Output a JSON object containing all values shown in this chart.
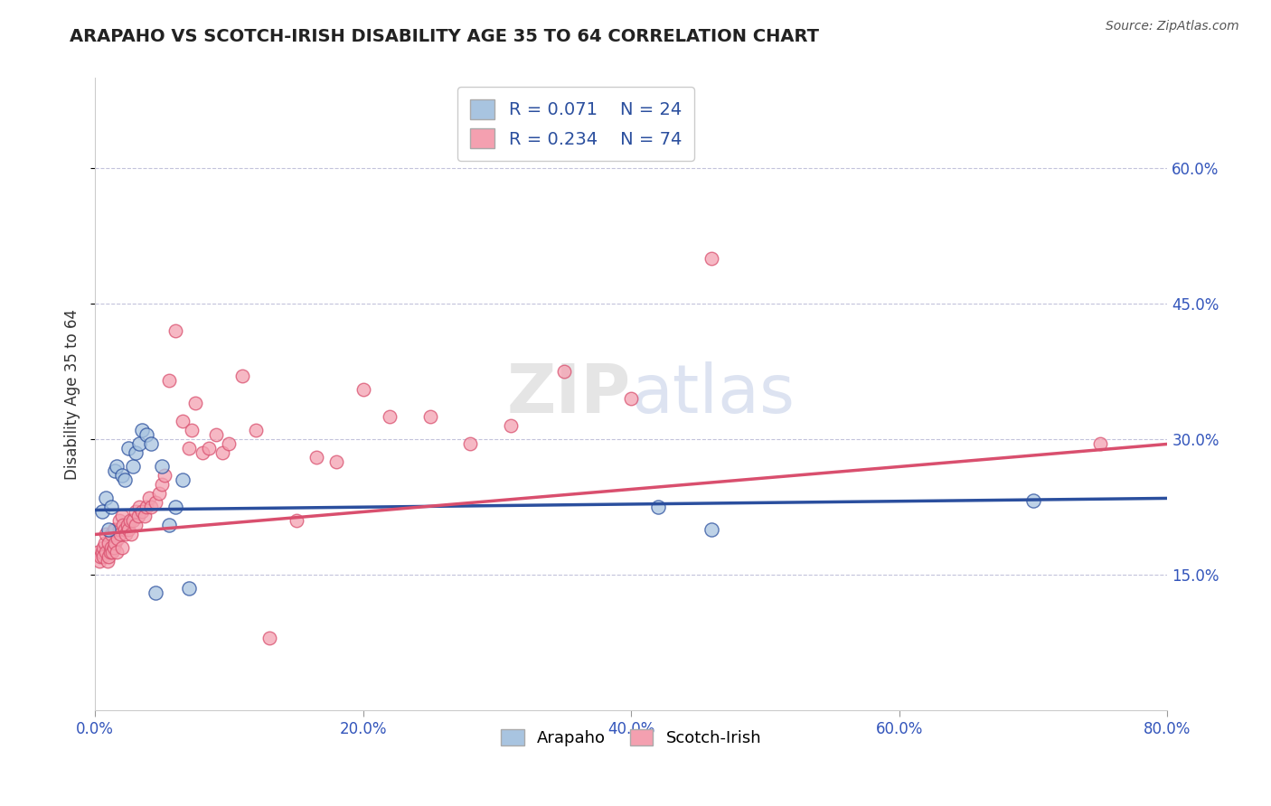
{
  "title": "ARAPAHO VS SCOTCH-IRISH DISABILITY AGE 35 TO 64 CORRELATION CHART",
  "source": "Source: ZipAtlas.com",
  "ylabel": "Disability Age 35 to 64",
  "watermark": "ZIPatlas",
  "legend_label1": "Arapaho",
  "legend_label2": "Scotch-Irish",
  "R1": 0.071,
  "N1": 24,
  "R2": 0.234,
  "N2": 74,
  "color_blue": "#A8C4E0",
  "color_pink": "#F4A0B0",
  "line_blue": "#2B4F9E",
  "line_pink": "#D94F6E",
  "xlim": [
    0.0,
    0.8
  ],
  "ylim": [
    0.0,
    0.7
  ],
  "ytick_labels": [
    "15.0%",
    "30.0%",
    "45.0%",
    "60.0%"
  ],
  "ytick_values": [
    0.15,
    0.3,
    0.45,
    0.6
  ],
  "xtick_labels": [
    "0.0%",
    "20.0%",
    "40.0%",
    "60.0%",
    "80.0%"
  ],
  "xtick_values": [
    0.0,
    0.2,
    0.4,
    0.6,
    0.8
  ],
  "arapaho_x": [
    0.005,
    0.008,
    0.01,
    0.012,
    0.015,
    0.016,
    0.02,
    0.022,
    0.025,
    0.028,
    0.03,
    0.033,
    0.035,
    0.038,
    0.042,
    0.045,
    0.05,
    0.055,
    0.06,
    0.065,
    0.07,
    0.42,
    0.46,
    0.7
  ],
  "arapaho_y": [
    0.22,
    0.235,
    0.2,
    0.225,
    0.265,
    0.27,
    0.26,
    0.255,
    0.29,
    0.27,
    0.285,
    0.295,
    0.31,
    0.305,
    0.295,
    0.13,
    0.27,
    0.205,
    0.225,
    0.255,
    0.135,
    0.225,
    0.2,
    0.232
  ],
  "scotchirish_x": [
    0.002,
    0.003,
    0.004,
    0.005,
    0.006,
    0.006,
    0.007,
    0.008,
    0.008,
    0.009,
    0.01,
    0.01,
    0.011,
    0.012,
    0.012,
    0.013,
    0.014,
    0.014,
    0.015,
    0.015,
    0.016,
    0.017,
    0.018,
    0.018,
    0.019,
    0.02,
    0.02,
    0.021,
    0.022,
    0.023,
    0.024,
    0.025,
    0.026,
    0.027,
    0.028,
    0.03,
    0.03,
    0.032,
    0.033,
    0.035,
    0.037,
    0.038,
    0.04,
    0.042,
    0.045,
    0.048,
    0.05,
    0.052,
    0.055,
    0.06,
    0.065,
    0.07,
    0.072,
    0.075,
    0.08,
    0.085,
    0.09,
    0.095,
    0.1,
    0.11,
    0.12,
    0.13,
    0.15,
    0.165,
    0.18,
    0.2,
    0.22,
    0.25,
    0.28,
    0.31,
    0.35,
    0.4,
    0.46,
    0.75
  ],
  "scotchirish_y": [
    0.175,
    0.165,
    0.17,
    0.175,
    0.18,
    0.17,
    0.185,
    0.175,
    0.195,
    0.165,
    0.17,
    0.185,
    0.175,
    0.18,
    0.195,
    0.175,
    0.18,
    0.2,
    0.185,
    0.2,
    0.175,
    0.19,
    0.2,
    0.21,
    0.195,
    0.18,
    0.215,
    0.205,
    0.2,
    0.195,
    0.205,
    0.2,
    0.21,
    0.195,
    0.21,
    0.205,
    0.22,
    0.215,
    0.225,
    0.22,
    0.215,
    0.225,
    0.235,
    0.225,
    0.23,
    0.24,
    0.25,
    0.26,
    0.365,
    0.42,
    0.32,
    0.29,
    0.31,
    0.34,
    0.285,
    0.29,
    0.305,
    0.285,
    0.295,
    0.37,
    0.31,
    0.08,
    0.21,
    0.28,
    0.275,
    0.355,
    0.325,
    0.325,
    0.295,
    0.315,
    0.375,
    0.345,
    0.5,
    0.295
  ],
  "blue_line_x": [
    0.0,
    0.8
  ],
  "blue_line_y": [
    0.222,
    0.235
  ],
  "pink_line_x": [
    0.0,
    0.8
  ],
  "pink_line_y": [
    0.195,
    0.295
  ]
}
